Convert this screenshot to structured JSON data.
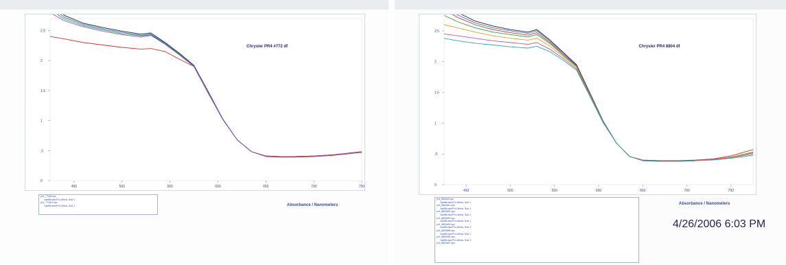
{
  "timestamp": "4/26/2006 6:03 PM",
  "chart_data": [
    {
      "type": "line",
      "title": "Chrysler PR4 #772 df",
      "xlabel": "Absorbance / Nanometers",
      "ylabel": "",
      "x_ticks": [
        "450",
        "500",
        "550",
        "600",
        "650",
        "700",
        "750"
      ],
      "y_ticks": [
        "0",
        ".5",
        "1",
        "1.5",
        "2",
        "2.5"
      ],
      "xlim": [
        425,
        750
      ],
      "ylim": [
        0,
        2.7
      ],
      "legend": [
        "pr4_772df.spc",
        "\\\\ad\\Brown\\Pr4-df\\nia, Sub 1",
        "pr4_772df1.spc",
        "\\\\ad\\Brown\\Pr4-df\\nia, Sub 1"
      ],
      "series": [
        {
          "color": "#d8302a",
          "x": [
            425,
            440,
            460,
            480,
            500,
            520,
            530,
            545,
            560,
            575,
            590,
            605,
            620,
            635,
            650,
            665,
            680,
            700,
            720,
            750
          ],
          "y": [
            2.4,
            2.36,
            2.3,
            2.26,
            2.22,
            2.19,
            2.2,
            2.15,
            2.02,
            1.9,
            1.45,
            1.02,
            0.68,
            0.48,
            0.4,
            0.39,
            0.39,
            0.4,
            0.42,
            0.47
          ]
        },
        {
          "color": "#222222",
          "x": [
            425,
            440,
            460,
            480,
            500,
            520,
            530,
            545,
            560,
            575,
            590,
            605,
            620,
            635,
            650,
            665,
            680,
            700,
            720,
            750
          ],
          "y": [
            2.95,
            2.75,
            2.62,
            2.55,
            2.49,
            2.44,
            2.46,
            2.3,
            2.12,
            1.92,
            1.48,
            1.03,
            0.68,
            0.48,
            0.41,
            0.4,
            0.4,
            0.41,
            0.43,
            0.48
          ]
        },
        {
          "color": "#3b6fd6",
          "x": [
            425,
            440,
            460,
            480,
            500,
            520,
            530,
            545,
            560,
            575,
            590,
            605,
            620,
            635,
            650,
            665,
            680,
            700,
            720,
            750
          ],
          "y": [
            2.9,
            2.72,
            2.6,
            2.53,
            2.47,
            2.42,
            2.44,
            2.29,
            2.11,
            1.91,
            1.47,
            1.03,
            0.68,
            0.48,
            0.41,
            0.4,
            0.4,
            0.41,
            0.43,
            0.48
          ]
        },
        {
          "color": "#2a9e4a",
          "x": [
            425,
            440,
            460,
            480,
            500,
            520,
            530,
            545,
            560,
            575,
            590,
            605,
            620,
            635,
            650,
            665,
            680,
            700,
            720,
            750
          ],
          "y": [
            2.85,
            2.69,
            2.58,
            2.51,
            2.45,
            2.41,
            2.43,
            2.28,
            2.1,
            1.9,
            1.46,
            1.02,
            0.68,
            0.48,
            0.41,
            0.4,
            0.4,
            0.41,
            0.43,
            0.48
          ]
        },
        {
          "color": "#9a52c2",
          "x": [
            425,
            440,
            460,
            480,
            500,
            520,
            530,
            545,
            560,
            575,
            590,
            605,
            620,
            635,
            650,
            665,
            680,
            700,
            720,
            750
          ],
          "y": [
            2.8,
            2.66,
            2.56,
            2.49,
            2.43,
            2.39,
            2.42,
            2.27,
            2.09,
            1.9,
            1.46,
            1.02,
            0.68,
            0.48,
            0.41,
            0.4,
            0.4,
            0.41,
            0.43,
            0.48
          ]
        }
      ]
    },
    {
      "type": "line",
      "title": "Chrysler PR4 8804 df",
      "xlabel": "Absorbance / Nanometers",
      "ylabel": "",
      "x_ticks": [
        "450",
        "500",
        "550",
        "600",
        "650",
        "700",
        "750"
      ],
      "y_ticks": [
        "0",
        ".5",
        "1",
        "1.5",
        "2",
        "2.5"
      ],
      "xlim": [
        425,
        775
      ],
      "ylim": [
        0,
        2.7
      ],
      "legend": [
        "pr4_8804df.spc",
        "\\\\ad\\Brown\\Pr4-df\\nia, Sub 1",
        "pr4_8804df1.spc",
        "\\\\ad\\Brown\\Pr4-df\\nia, Sub 1",
        "pr4_8804df2.spc",
        "\\\\ad\\Brown\\Pr4-df\\nia, Sub 1",
        "pr4_8804df3.spc",
        "\\\\ad\\Brown\\Pr4-df\\nia, Sub 1",
        "pr4_8804df4.spc",
        "\\\\ad\\Brown\\Pr4-df\\nia, Sub 1",
        "pr4_8804df5.spc",
        "\\\\ad\\Brown\\Pr4-df\\nia, Sub 1",
        "pr4_8804df6.spc",
        "\\\\ad\\Brown\\Pr4-df\\nia, Sub 1",
        "pr4_8804df7.spc"
      ],
      "series": [
        {
          "color": "#222222",
          "x": [
            425,
            440,
            460,
            480,
            500,
            520,
            530,
            545,
            560,
            575,
            590,
            605,
            620,
            635,
            650,
            670,
            690,
            710,
            730,
            750,
            775
          ],
          "y": [
            2.98,
            2.8,
            2.66,
            2.58,
            2.52,
            2.48,
            2.52,
            2.35,
            2.15,
            1.95,
            1.5,
            1.04,
            0.68,
            0.46,
            0.39,
            0.38,
            0.38,
            0.39,
            0.41,
            0.45,
            0.52
          ]
        },
        {
          "color": "#3b6fd6",
          "x": [
            425,
            440,
            460,
            480,
            500,
            520,
            530,
            545,
            560,
            575,
            590,
            605,
            620,
            635,
            650,
            670,
            690,
            710,
            730,
            750,
            775
          ],
          "y": [
            2.92,
            2.76,
            2.63,
            2.55,
            2.5,
            2.46,
            2.5,
            2.33,
            2.14,
            1.94,
            1.49,
            1.04,
            0.68,
            0.46,
            0.39,
            0.38,
            0.38,
            0.39,
            0.41,
            0.45,
            0.53
          ]
        },
        {
          "color": "#d8302a",
          "x": [
            425,
            440,
            460,
            480,
            500,
            520,
            530,
            545,
            560,
            575,
            590,
            605,
            620,
            635,
            650,
            670,
            690,
            710,
            730,
            750,
            775
          ],
          "y": [
            2.85,
            2.72,
            2.6,
            2.52,
            2.47,
            2.43,
            2.47,
            2.31,
            2.12,
            1.93,
            1.48,
            1.03,
            0.68,
            0.46,
            0.4,
            0.39,
            0.39,
            0.4,
            0.42,
            0.47,
            0.57
          ]
        },
        {
          "color": "#2a9e4a",
          "x": [
            425,
            440,
            460,
            480,
            500,
            520,
            530,
            545,
            560,
            575,
            590,
            605,
            620,
            635,
            650,
            670,
            690,
            710,
            730,
            750,
            775
          ],
          "y": [
            2.75,
            2.65,
            2.55,
            2.48,
            2.44,
            2.4,
            2.44,
            2.29,
            2.1,
            1.92,
            1.47,
            1.03,
            0.68,
            0.46,
            0.39,
            0.38,
            0.38,
            0.39,
            0.41,
            0.45,
            0.52
          ]
        },
        {
          "color": "#d9a21e",
          "x": [
            425,
            440,
            460,
            480,
            500,
            520,
            530,
            545,
            560,
            575,
            590,
            605,
            620,
            635,
            650,
            670,
            690,
            710,
            730,
            750,
            775
          ],
          "y": [
            2.6,
            2.55,
            2.48,
            2.42,
            2.38,
            2.35,
            2.38,
            2.25,
            2.08,
            1.9,
            1.46,
            1.02,
            0.68,
            0.46,
            0.39,
            0.38,
            0.38,
            0.39,
            0.41,
            0.45,
            0.53
          ]
        },
        {
          "color": "#c2569e",
          "x": [
            425,
            440,
            460,
            480,
            500,
            520,
            530,
            545,
            560,
            575,
            590,
            605,
            620,
            635,
            650,
            670,
            690,
            710,
            730,
            750,
            775
          ],
          "y": [
            2.45,
            2.42,
            2.38,
            2.34,
            2.31,
            2.28,
            2.31,
            2.2,
            2.05,
            1.88,
            1.45,
            1.02,
            0.68,
            0.46,
            0.39,
            0.38,
            0.38,
            0.39,
            0.41,
            0.44,
            0.5
          ]
        },
        {
          "color": "#2aa8b0",
          "x": [
            425,
            440,
            460,
            480,
            500,
            520,
            530,
            545,
            560,
            575,
            590,
            605,
            620,
            635,
            650,
            670,
            690,
            710,
            730,
            750,
            775
          ],
          "y": [
            2.38,
            2.34,
            2.3,
            2.27,
            2.24,
            2.22,
            2.25,
            2.16,
            2.02,
            1.86,
            1.44,
            1.01,
            0.68,
            0.46,
            0.39,
            0.38,
            0.38,
            0.39,
            0.4,
            0.43,
            0.48
          ]
        }
      ]
    }
  ]
}
